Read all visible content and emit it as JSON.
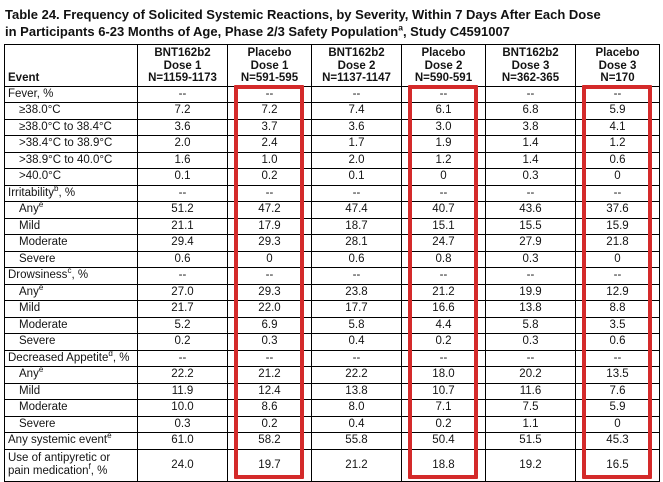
{
  "title": {
    "line1": "Table 24. Frequency of Solicited Systemic Reactions, by Severity, Within 7 Days After Each Dose",
    "line2_pre": "in Participants 6-23 Months of Age, Phase 2/3 Safety Population",
    "line2_sup": "a",
    "line2_post": ", Study C4591007"
  },
  "header": {
    "event_label": "Event",
    "columns": [
      {
        "group": "BNT162b2",
        "dose": "Dose 1",
        "n": "N=1159-1173",
        "highlight": false
      },
      {
        "group": "Placebo",
        "dose": "Dose 1",
        "n": "N=591-595",
        "highlight": true
      },
      {
        "group": "BNT162b2",
        "dose": "Dose 2",
        "n": "N=1137-1147",
        "highlight": false
      },
      {
        "group": "Placebo",
        "dose": "Dose 2",
        "n": "N=590-591",
        "highlight": true
      },
      {
        "group": "BNT162b2",
        "dose": "Dose 3",
        "n": "N=362-365",
        "highlight": false
      },
      {
        "group": "Placebo",
        "dose": "Dose 3",
        "n": "N=170",
        "highlight": true
      }
    ]
  },
  "rows": [
    {
      "label": "Fever, %",
      "sup": "",
      "suffix": "",
      "indent": false,
      "values": [
        "--",
        "--",
        "--",
        "--",
        "--",
        "--"
      ]
    },
    {
      "label": "≥38.0°C",
      "sup": "",
      "suffix": "",
      "indent": true,
      "values": [
        "7.2",
        "7.2",
        "7.4",
        "6.1",
        "6.8",
        "5.9"
      ]
    },
    {
      "label": "≥38.0°C to 38.4°C",
      "sup": "",
      "suffix": "",
      "indent": true,
      "values": [
        "3.6",
        "3.7",
        "3.6",
        "3.0",
        "3.8",
        "4.1"
      ]
    },
    {
      "label": ">38.4°C to 38.9°C",
      "sup": "",
      "suffix": "",
      "indent": true,
      "values": [
        "2.0",
        "2.4",
        "1.7",
        "1.9",
        "1.4",
        "1.2"
      ]
    },
    {
      "label": ">38.9°C to 40.0°C",
      "sup": "",
      "suffix": "",
      "indent": true,
      "values": [
        "1.6",
        "1.0",
        "2.0",
        "1.2",
        "1.4",
        "0.6"
      ]
    },
    {
      "label": ">40.0°C",
      "sup": "",
      "suffix": "",
      "indent": true,
      "values": [
        "0.1",
        "0.2",
        "0.1",
        "0",
        "0.3",
        "0"
      ]
    },
    {
      "label": "Irritability",
      "sup": "b",
      "suffix": ", %",
      "indent": false,
      "values": [
        "--",
        "--",
        "--",
        "--",
        "--",
        "--"
      ]
    },
    {
      "label": "Any",
      "sup": "e",
      "suffix": "",
      "indent": true,
      "values": [
        "51.2",
        "47.2",
        "47.4",
        "40.7",
        "43.6",
        "37.6"
      ]
    },
    {
      "label": "Mild",
      "sup": "",
      "suffix": "",
      "indent": true,
      "values": [
        "21.1",
        "17.9",
        "18.7",
        "15.1",
        "15.5",
        "15.9"
      ]
    },
    {
      "label": "Moderate",
      "sup": "",
      "suffix": "",
      "indent": true,
      "values": [
        "29.4",
        "29.3",
        "28.1",
        "24.7",
        "27.9",
        "21.8"
      ]
    },
    {
      "label": "Severe",
      "sup": "",
      "suffix": "",
      "indent": true,
      "values": [
        "0.6",
        "0",
        "0.6",
        "0.8",
        "0.3",
        "0"
      ]
    },
    {
      "label": "Drowsiness",
      "sup": "c",
      "suffix": ", %",
      "indent": false,
      "values": [
        "--",
        "--",
        "--",
        "--",
        "--",
        "--"
      ]
    },
    {
      "label": "Any",
      "sup": "e",
      "suffix": "",
      "indent": true,
      "values": [
        "27.0",
        "29.3",
        "23.8",
        "21.2",
        "19.9",
        "12.9"
      ]
    },
    {
      "label": "Mild",
      "sup": "",
      "suffix": "",
      "indent": true,
      "values": [
        "21.7",
        "22.0",
        "17.7",
        "16.6",
        "13.8",
        "8.8"
      ]
    },
    {
      "label": "Moderate",
      "sup": "",
      "suffix": "",
      "indent": true,
      "values": [
        "5.2",
        "6.9",
        "5.8",
        "4.4",
        "5.8",
        "3.5"
      ]
    },
    {
      "label": "Severe",
      "sup": "",
      "suffix": "",
      "indent": true,
      "values": [
        "0.2",
        "0.3",
        "0.4",
        "0.2",
        "0.3",
        "0.6"
      ]
    },
    {
      "label": "Decreased Appetite",
      "sup": "d",
      "suffix": ", %",
      "indent": false,
      "values": [
        "--",
        "--",
        "--",
        "--",
        "--",
        "--"
      ]
    },
    {
      "label": "Any",
      "sup": "e",
      "suffix": "",
      "indent": true,
      "values": [
        "22.2",
        "21.2",
        "22.2",
        "18.0",
        "20.2",
        "13.5"
      ]
    },
    {
      "label": "Mild",
      "sup": "",
      "suffix": "",
      "indent": true,
      "values": [
        "11.9",
        "12.4",
        "13.8",
        "10.7",
        "11.6",
        "7.6"
      ]
    },
    {
      "label": "Moderate",
      "sup": "",
      "suffix": "",
      "indent": true,
      "values": [
        "10.0",
        "8.6",
        "8.0",
        "7.1",
        "7.5",
        "5.9"
      ]
    },
    {
      "label": "Severe",
      "sup": "",
      "suffix": "",
      "indent": true,
      "values": [
        "0.3",
        "0.2",
        "0.4",
        "0.2",
        "1.1",
        "0"
      ]
    },
    {
      "label": "Any systemic event",
      "sup": "e",
      "suffix": "",
      "indent": false,
      "values": [
        "61.0",
        "58.2",
        "55.8",
        "50.4",
        "51.5",
        "45.3"
      ]
    },
    {
      "label": "Use of antipyretic or pain medication",
      "sup": "f",
      "suffix": ", %",
      "indent": false,
      "twoline": true,
      "values": [
        "24.0",
        "19.7",
        "21.2",
        "18.8",
        "19.2",
        "16.5"
      ]
    }
  ],
  "highlight": {
    "color": "#d42a2a",
    "column_indexes": [
      1,
      3,
      5
    ]
  }
}
